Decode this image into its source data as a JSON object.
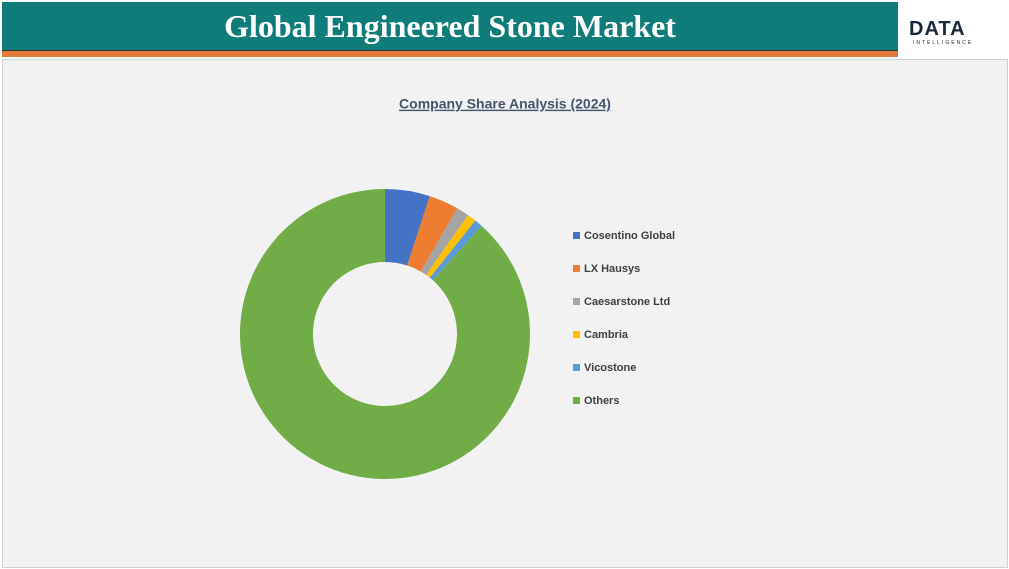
{
  "header": {
    "title": "Global Engineered Stone Market"
  },
  "logo": {
    "text": "DATA",
    "subtext": "INTELLIGENCE"
  },
  "chart_data": {
    "type": "donut",
    "title": "Company Share Analysis (2024)",
    "categories": [
      "Cosentino Global",
      "LX Hausys",
      "Caesarstone Ltd",
      "Cambria",
      "Vicostone",
      "Others"
    ],
    "values": [
      5,
      3.3,
      1.4,
      1.0,
      0.9,
      88.4
    ],
    "colors": [
      "#4472c4",
      "#ed7d31",
      "#a5a5a5",
      "#ffc000",
      "#5b9bd5",
      "#70ad47"
    ],
    "legend": "right"
  }
}
